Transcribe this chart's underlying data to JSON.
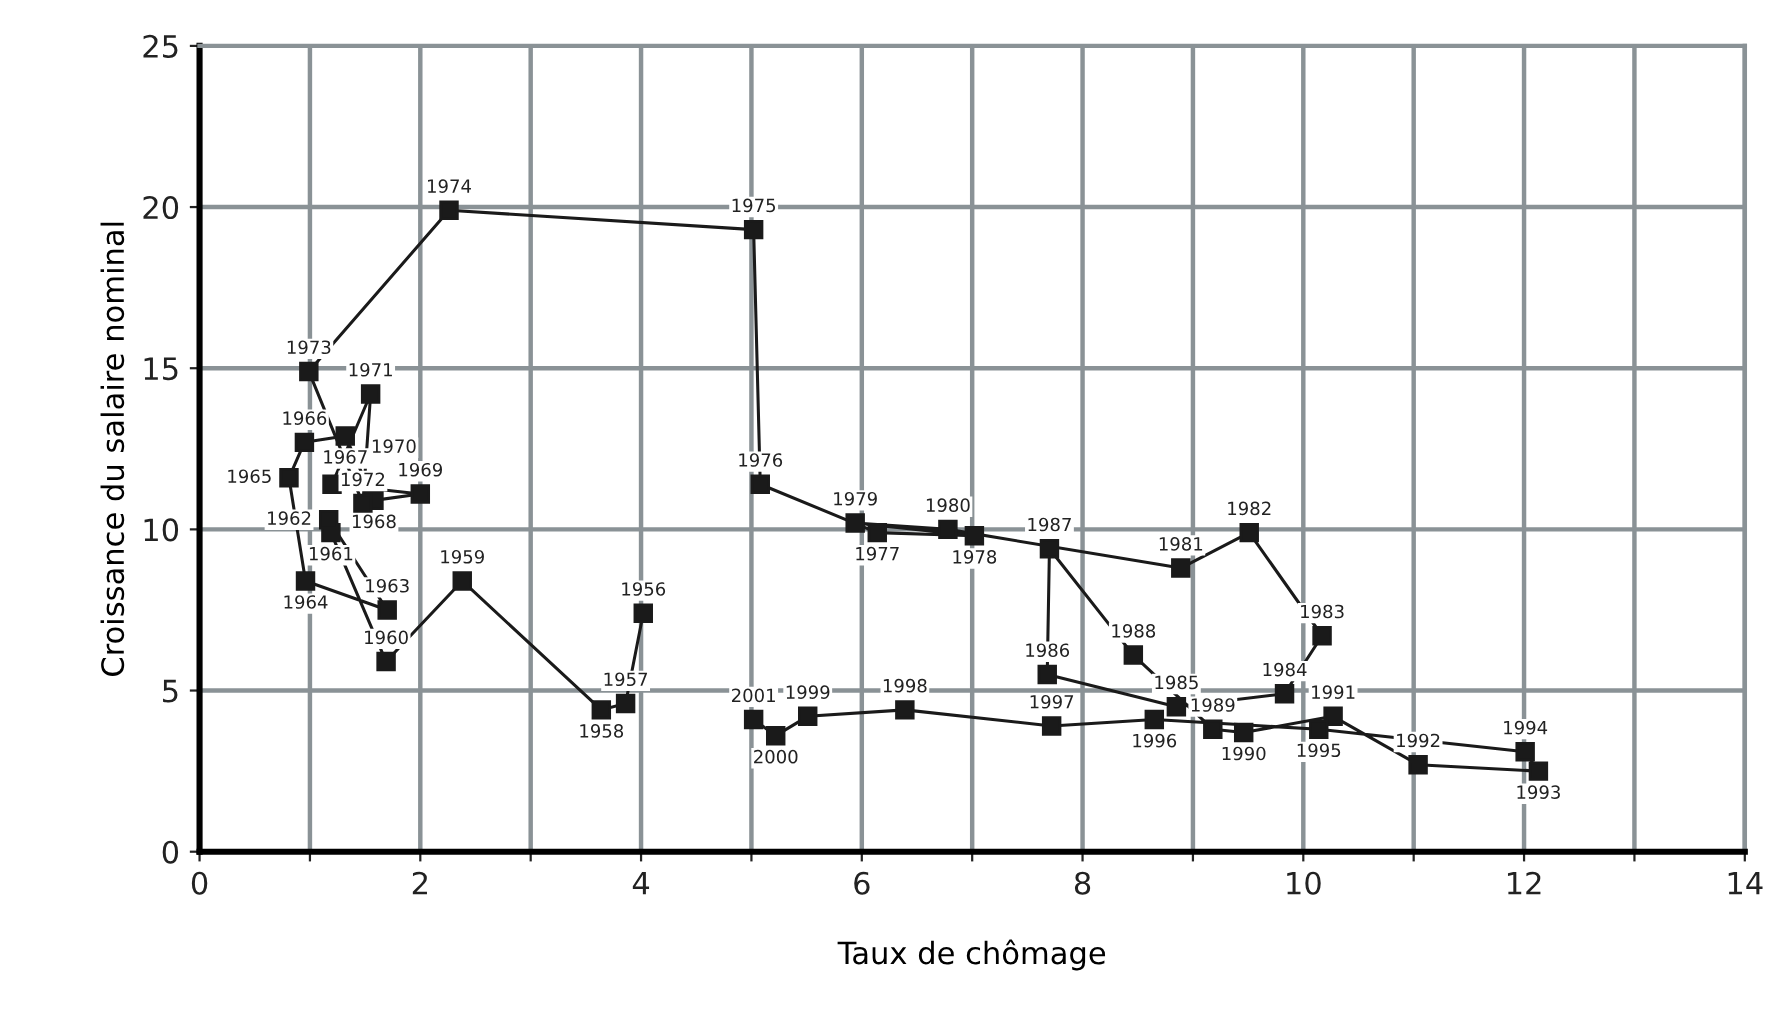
{
  "chart_data": {
    "type": "line",
    "xlabel": "Taux de chômage",
    "ylabel": "Croissance du salaire nominal",
    "xlim": [
      0,
      14
    ],
    "ylim": [
      0,
      25
    ],
    "xticks": [
      0,
      {
        "value": 1,
        "label": null
      },
      2,
      {
        "value": 3,
        "label": null
      },
      4,
      {
        "value": 5,
        "label": null
      },
      6,
      {
        "value": 7,
        "label": null
      },
      8,
      {
        "value": 9,
        "label": null
      },
      10,
      {
        "value": 11,
        "label": null
      },
      12,
      {
        "value": 13,
        "label": null
      },
      14
    ],
    "yticks": [
      0,
      5,
      10,
      15,
      20,
      25
    ],
    "grid": true,
    "marker": "square",
    "line_style": "solid",
    "series": [
      {
        "color": "#1a1a1a",
        "x": [
          4.02,
          3.86,
          3.64,
          2.38,
          1.69,
          1.19,
          1.17,
          1.7,
          0.96,
          0.81,
          0.95,
          1.32,
          1.58,
          2.0,
          1.2,
          1.55,
          1.48,
          0.99,
          2.26,
          5.02,
          5.08,
          6.14,
          7.02,
          5.94,
          6.78,
          8.89,
          9.51,
          10.17,
          9.83,
          8.85,
          7.68,
          7.7,
          8.46,
          9.18,
          9.46,
          10.27,
          11.04,
          12.13,
          12.01,
          10.14,
          8.65,
          7.72,
          6.39,
          5.51,
          5.22,
          5.02
        ],
        "values": [
          7.4,
          4.6,
          4.4,
          8.4,
          5.9,
          9.9,
          10.3,
          7.5,
          8.4,
          11.6,
          12.7,
          12.9,
          10.9,
          11.1,
          11.4,
          14.2,
          10.8,
          14.9,
          19.9,
          19.3,
          11.4,
          9.9,
          9.8,
          10.2,
          10.0,
          8.8,
          9.9,
          6.7,
          4.9,
          4.5,
          5.5,
          9.4,
          6.1,
          3.8,
          3.7,
          4.2,
          2.7,
          2.5,
          3.1,
          3.8,
          4.1,
          3.9,
          4.4,
          4.2,
          3.6,
          4.1
        ]
      }
    ],
    "annotations": [
      {
        "text": "1956",
        "x": 4.02,
        "y": 7.4
      },
      {
        "text": "1957",
        "x": 3.86,
        "y": 4.6
      },
      {
        "text": "1958",
        "x": 3.64,
        "y": 4.4
      },
      {
        "text": "1959",
        "x": 2.38,
        "y": 8.4
      },
      {
        "text": "1960",
        "x": 1.69,
        "y": 5.9
      },
      {
        "text": "1961",
        "x": 1.19,
        "y": 9.9
      },
      {
        "text": "1962",
        "x": 1.17,
        "y": 10.3
      },
      {
        "text": "1963",
        "x": 1.7,
        "y": 7.5
      },
      {
        "text": "1964",
        "x": 0.96,
        "y": 8.4
      },
      {
        "text": "1965",
        "x": 0.81,
        "y": 11.6
      },
      {
        "text": "1966",
        "x": 0.95,
        "y": 12.7
      },
      {
        "text": "1967",
        "x": 1.32,
        "y": 12.9
      },
      {
        "text": "1968",
        "x": 1.58,
        "y": 10.9
      },
      {
        "text": "1969",
        "x": 2.0,
        "y": 11.1
      },
      {
        "text": "1970",
        "x": 1.2,
        "y": 11.4
      },
      {
        "text": "1971",
        "x": 1.55,
        "y": 14.2
      },
      {
        "text": "1972",
        "x": 1.48,
        "y": 10.8
      },
      {
        "text": "1973",
        "x": 0.99,
        "y": 14.9
      },
      {
        "text": "1974",
        "x": 2.26,
        "y": 19.9
      },
      {
        "text": "1975",
        "x": 5.02,
        "y": 19.3
      },
      {
        "text": "1976",
        "x": 5.08,
        "y": 11.4
      },
      {
        "text": "1977",
        "x": 6.14,
        "y": 9.9
      },
      {
        "text": "1978",
        "x": 7.02,
        "y": 9.8
      },
      {
        "text": "1979",
        "x": 5.94,
        "y": 10.2
      },
      {
        "text": "1980",
        "x": 6.78,
        "y": 10.0
      },
      {
        "text": "1981",
        "x": 8.89,
        "y": 8.8
      },
      {
        "text": "1982",
        "x": 9.51,
        "y": 9.9
      },
      {
        "text": "1983",
        "x": 10.17,
        "y": 6.7
      },
      {
        "text": "1984",
        "x": 9.83,
        "y": 4.9
      },
      {
        "text": "1985",
        "x": 8.85,
        "y": 4.5
      },
      {
        "text": "1986",
        "x": 7.68,
        "y": 5.5
      },
      {
        "text": "1987",
        "x": 7.7,
        "y": 9.4
      },
      {
        "text": "1988",
        "x": 8.46,
        "y": 6.1
      },
      {
        "text": "1989",
        "x": 9.18,
        "y": 3.8
      },
      {
        "text": "1990",
        "x": 9.46,
        "y": 3.7
      },
      {
        "text": "1991",
        "x": 10.27,
        "y": 4.2
      },
      {
        "text": "1992",
        "x": 11.04,
        "y": 2.7
      },
      {
        "text": "1993",
        "x": 12.13,
        "y": 2.5
      },
      {
        "text": "1994",
        "x": 12.01,
        "y": 3.1
      },
      {
        "text": "1995",
        "x": 10.14,
        "y": 3.8
      },
      {
        "text": "1996",
        "x": 8.65,
        "y": 4.1
      },
      {
        "text": "1997",
        "x": 7.72,
        "y": 3.9
      },
      {
        "text": "1998",
        "x": 6.39,
        "y": 4.4
      },
      {
        "text": "1999",
        "x": 5.51,
        "y": 4.2
      },
      {
        "text": "2000",
        "x": 5.22,
        "y": 3.6
      },
      {
        "text": "2001",
        "x": 5.02,
        "y": 4.1
      }
    ]
  }
}
